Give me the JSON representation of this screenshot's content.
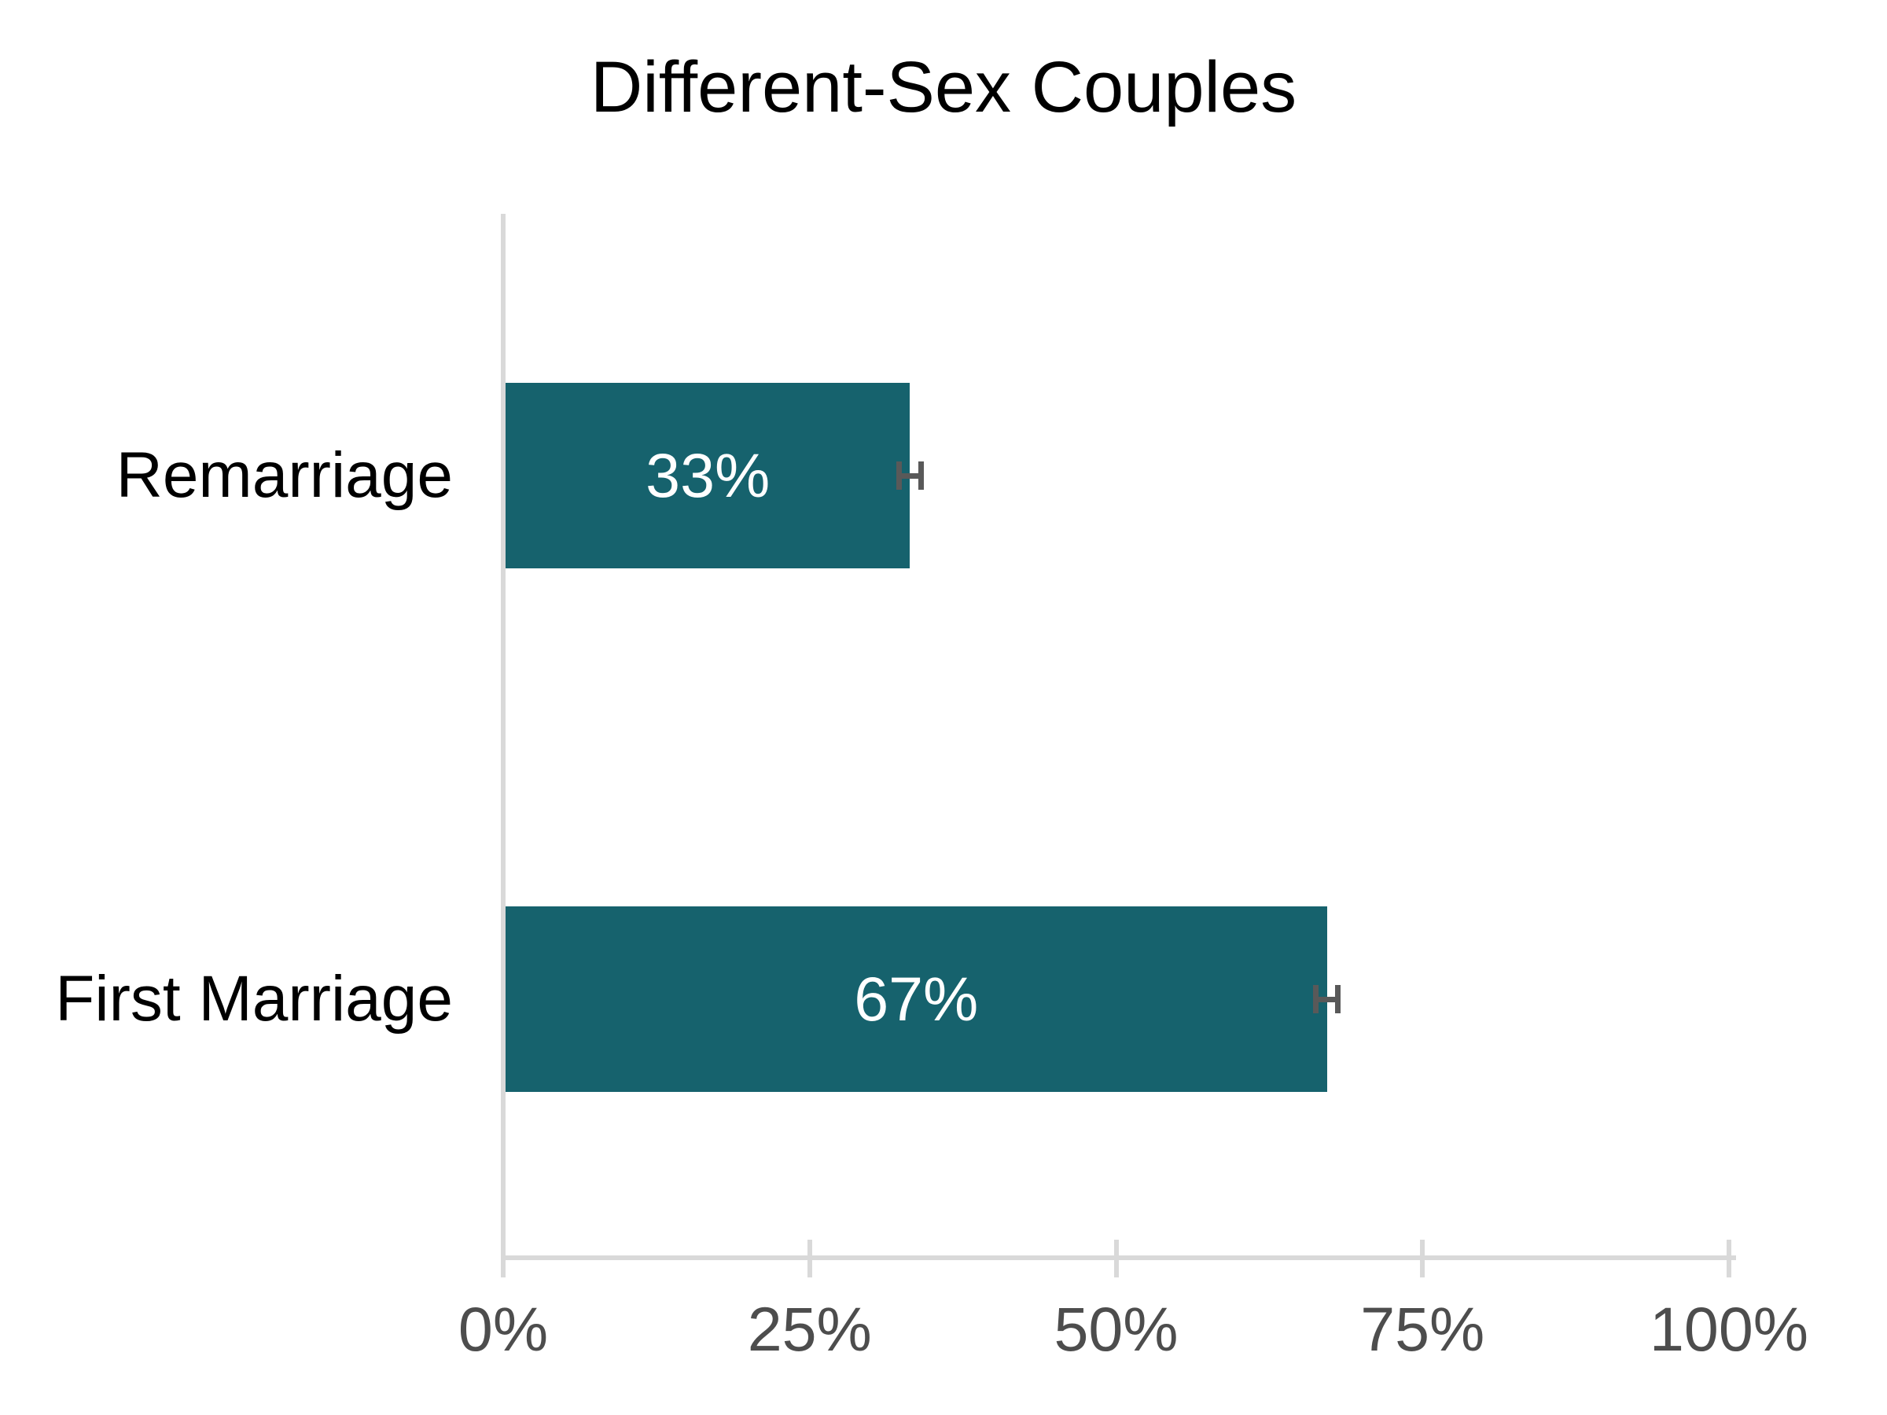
{
  "chart_data": {
    "type": "bar",
    "orientation": "horizontal",
    "title": "Different-Sex Couples",
    "categories": [
      "Remarriage",
      "First Marriage"
    ],
    "values": [
      33,
      67
    ],
    "value_labels": [
      "33%",
      "67%"
    ],
    "error_margin": 1.1,
    "x_ticks": [
      {
        "value": 0,
        "label": "0%"
      },
      {
        "value": 25,
        "label": "25%"
      },
      {
        "value": 50,
        "label": "50%"
      },
      {
        "value": 75,
        "label": "75%"
      },
      {
        "value": 100,
        "label": "100%"
      }
    ],
    "xlim": [
      0,
      100
    ],
    "xlabel": "",
    "ylabel": "",
    "grid": "off",
    "legend": "none",
    "colors": {
      "bar": "#16626D",
      "value_label": "#FFFFFF",
      "error_bar": "#595959",
      "axis_line": "#D9D9D9",
      "tick_label": "#4D4D4D",
      "category_label": "#000000",
      "title": "#000000",
      "background": "#FFFFFF"
    }
  }
}
